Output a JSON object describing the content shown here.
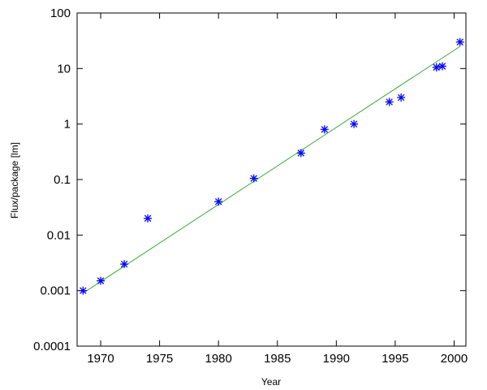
{
  "chart_data": {
    "type": "scatter",
    "xlabel": "Year",
    "ylabel": "Flux/package [lm]",
    "xlim": [
      1968,
      2001
    ],
    "ylim": [
      0.0001,
      100
    ],
    "yscale": "log",
    "x_ticks": [
      1970,
      1975,
      1980,
      1985,
      1990,
      1995,
      2000
    ],
    "y_ticks": [
      0.0001,
      0.001,
      0.01,
      0.1,
      1,
      10,
      100
    ],
    "y_tick_labels": [
      "0.0001",
      "0.001",
      "0.01",
      "0.1",
      "1",
      "10",
      "100"
    ],
    "grid": false,
    "series": [
      {
        "kind": "points",
        "marker": "asterisk",
        "color": "#0000ff",
        "x": [
          1968.5,
          1970,
          1972,
          1974,
          1980,
          1983,
          1987,
          1989,
          1991.5,
          1994.5,
          1995.5,
          1998.5,
          1999,
          2000.5
        ],
        "y": [
          0.001,
          0.0015,
          0.003,
          0.02,
          0.04,
          0.105,
          0.3,
          0.8,
          1.0,
          2.5,
          3.0,
          10.5,
          11,
          30
        ]
      },
      {
        "kind": "line",
        "color": "#33aa33",
        "x": [
          1968.5,
          2000.5
        ],
        "y": [
          0.0009,
          25
        ]
      }
    ]
  }
}
